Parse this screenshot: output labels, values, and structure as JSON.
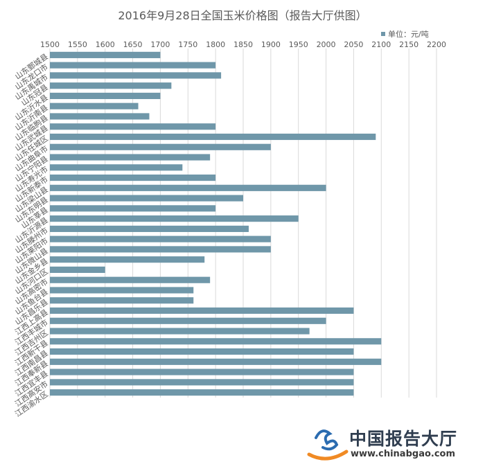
{
  "chart_data": {
    "type": "bar",
    "orientation": "horizontal",
    "title": "2016年9月28日全国玉米价格图（报告大厅供图）",
    "legend": {
      "label": "单位：元/吨",
      "position": "top-right"
    },
    "xlim": [
      1500,
      2200
    ],
    "xticks": [
      1500,
      1550,
      1600,
      1650,
      1700,
      1750,
      1800,
      1850,
      1900,
      1950,
      2000,
      2050,
      2100,
      2150,
      2200
    ],
    "grid": true,
    "categories": [
      "山东鄄城县",
      "山东龙口市",
      "山东禹城市",
      "山东冠县",
      "山东沂水县",
      "山东沂南县",
      "山东临朐县",
      "山东武城县",
      "山东任城区",
      "山东曲阜市",
      "山东宁阳县",
      "山东寿光市",
      "山东新泰市",
      "山东梁山县",
      "山东东明县",
      "山东莘县",
      "山东沂源县",
      "山东滕州市",
      "山东莱阳市",
      "山东微山县",
      "山东金乡县",
      "山东河口区",
      "山东高密市",
      "山东鱼台县",
      "山东昌乐县",
      "江西上高县",
      "江西丰城市",
      "江西吉州区",
      "江西新干县",
      "江西南昌县",
      "江西奉新县",
      "江西宜丰县",
      "江西高安市",
      "江西渝水区"
    ],
    "values": [
      1700,
      1800,
      1810,
      1720,
      1700,
      1660,
      1680,
      1800,
      2090,
      1900,
      1790,
      1740,
      1800,
      2000,
      1850,
      1800,
      1950,
      1860,
      1900,
      1900,
      1780,
      1600,
      1790,
      1760,
      1760,
      2050,
      2000,
      1970,
      2100,
      2050,
      2100,
      2050,
      2050,
      2050
    ]
  },
  "watermark": {
    "name_cn": "中国报告大厅",
    "url": "www.chinabgao.com",
    "logo_colors": [
      "#2b6cb0",
      "#f08a24"
    ]
  }
}
